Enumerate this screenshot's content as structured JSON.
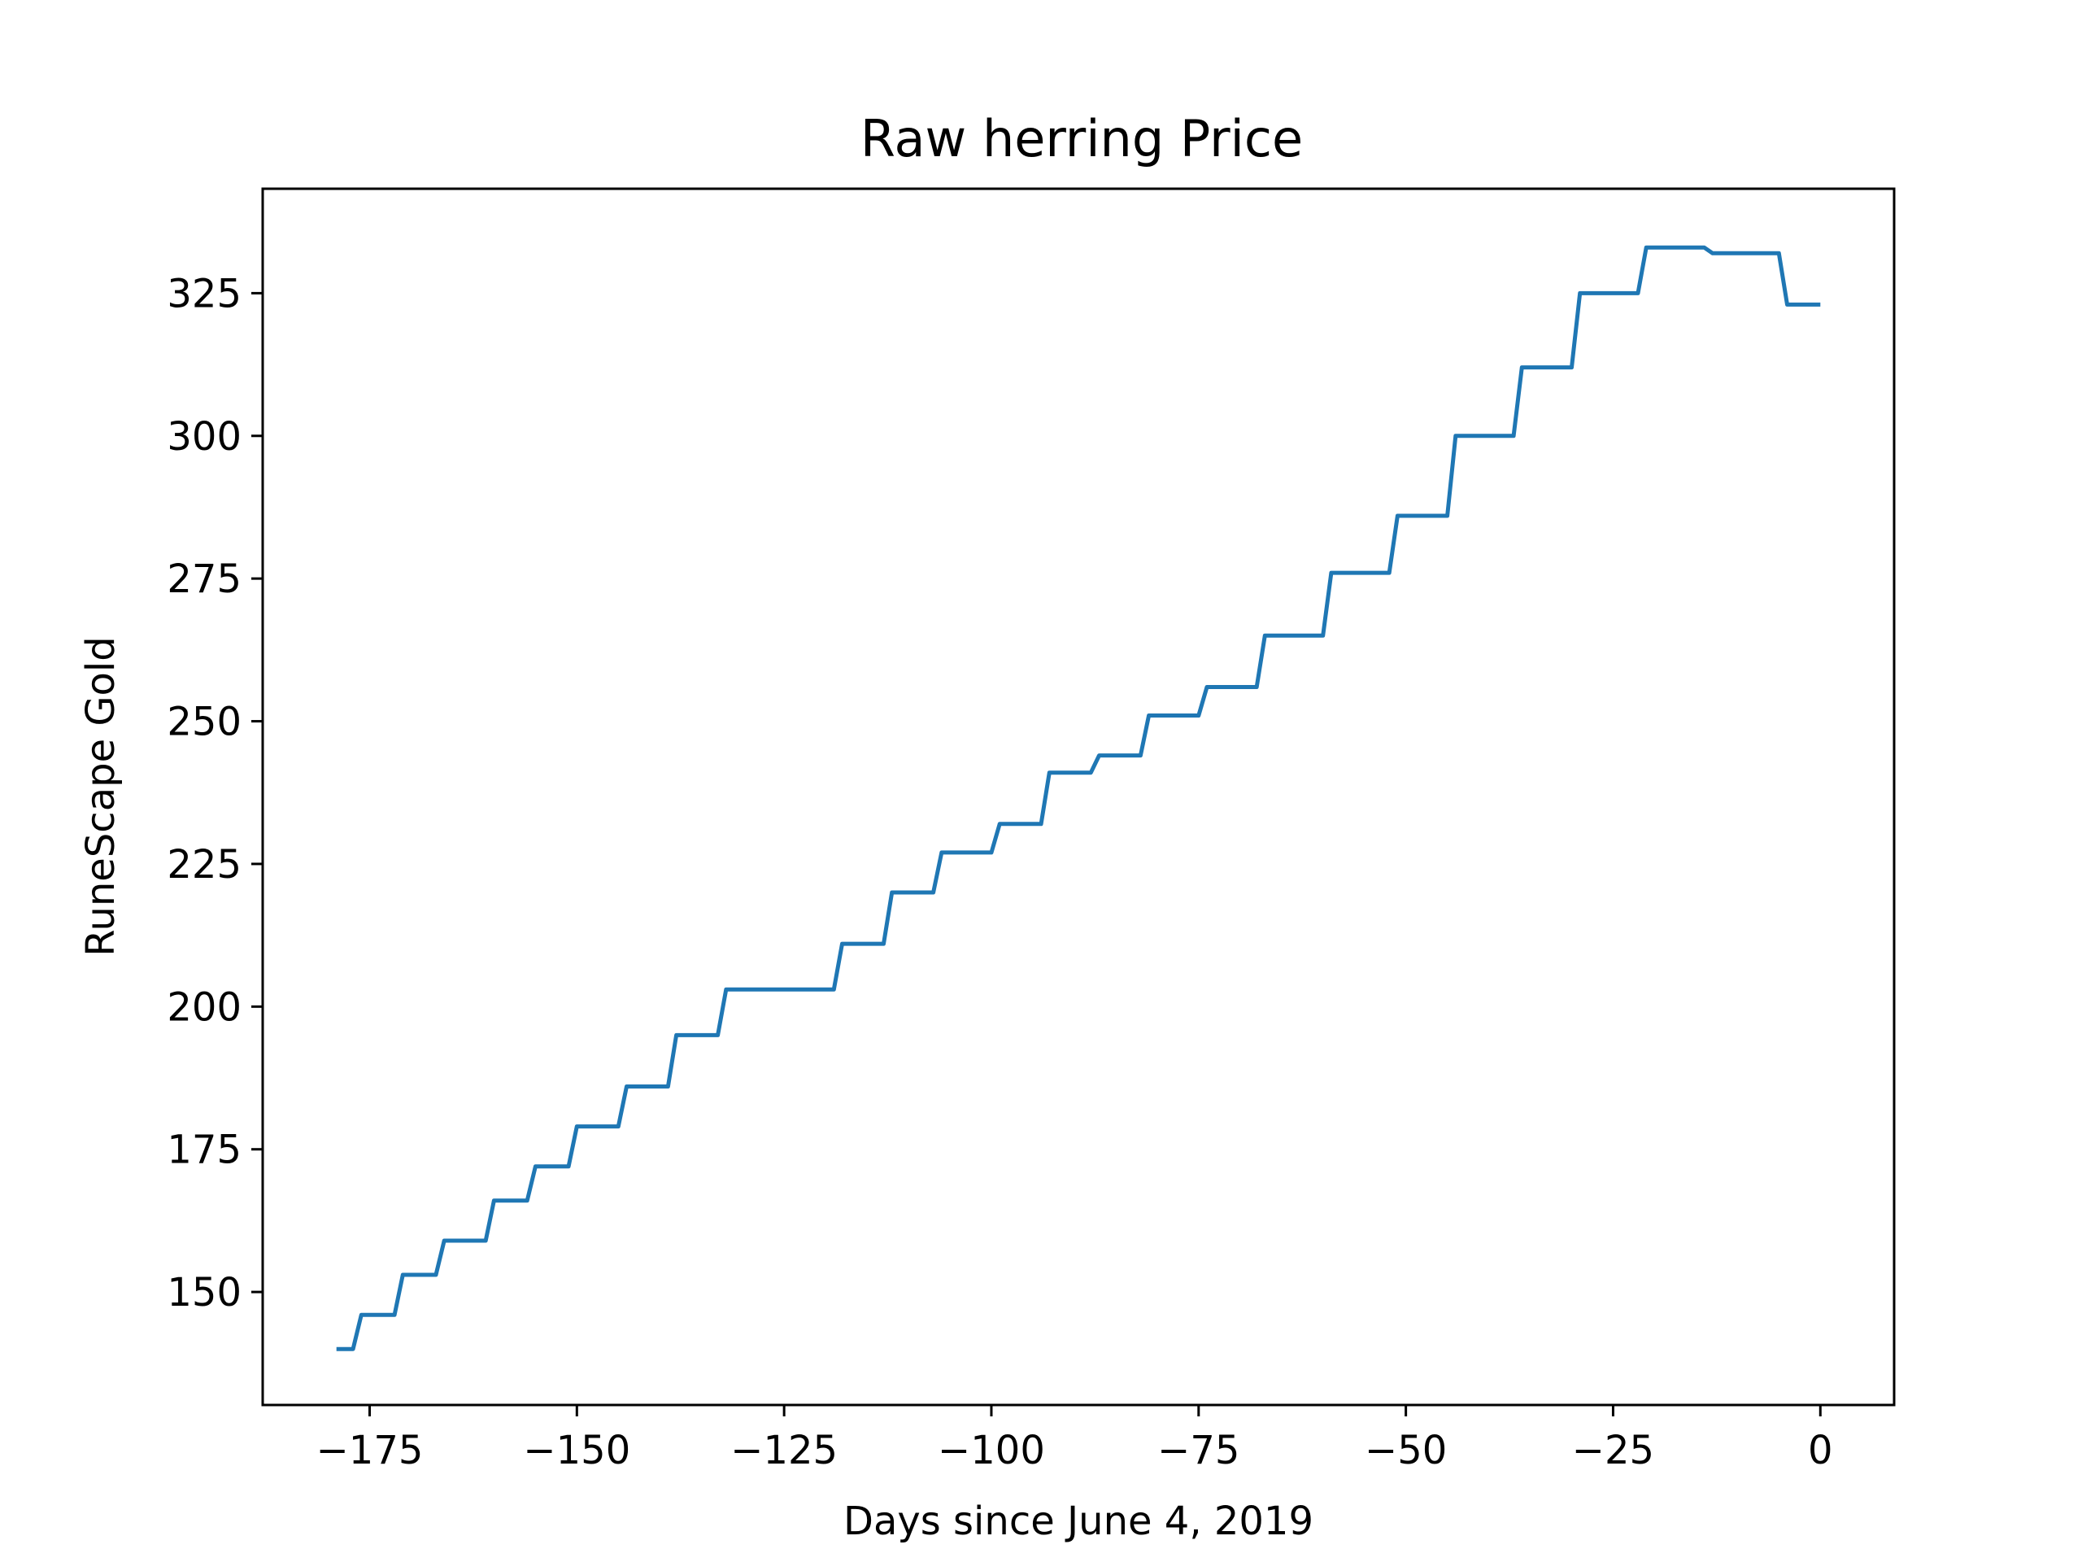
{
  "chart_data": {
    "type": "line",
    "title": "Raw herring Price",
    "xlabel": "Days since June 4, 2019",
    "ylabel": "RuneScape Gold",
    "xlim": [
      -187.9,
      8.9
    ],
    "ylim": [
      130.2,
      343.3
    ],
    "xticks": [
      -175,
      -150,
      -125,
      -100,
      -75,
      -50,
      -25,
      0
    ],
    "xtick_labels": [
      "−175",
      "−150",
      "−125",
      "−100",
      "−75",
      "−50",
      "−25",
      "0"
    ],
    "yticks": [
      150,
      175,
      200,
      225,
      250,
      275,
      300,
      325
    ],
    "ytick_labels": [
      "150",
      "175",
      "200",
      "225",
      "250",
      "275",
      "300",
      "325"
    ],
    "grid": false,
    "line_color": "#1f77b4",
    "series": [
      {
        "x": [
          -179,
          -177,
          -176,
          -172,
          -171,
          -167,
          -166,
          -161,
          -160,
          -156,
          -155,
          -151,
          -150,
          -145,
          -144,
          -139,
          -138,
          -133,
          -132,
          -119,
          -118,
          -113,
          -112,
          -107,
          -106,
          -100,
          -99,
          -94,
          -93,
          -88,
          -87,
          -82,
          -81,
          -75,
          -74,
          -68,
          -67,
          -60,
          -59,
          -52,
          -51,
          -45,
          -44,
          -37,
          -36,
          -30,
          -29,
          -22,
          -21,
          -14,
          -13,
          -5,
          -4,
          0
        ],
        "y": [
          140,
          140,
          146,
          146,
          153,
          153,
          159,
          159,
          166,
          166,
          172,
          172,
          179,
          179,
          186,
          186,
          195,
          195,
          203,
          203,
          211,
          211,
          220,
          220,
          227,
          227,
          232,
          232,
          241,
          241,
          244,
          244,
          251,
          251,
          256,
          256,
          265,
          265,
          276,
          276,
          286,
          286,
          300,
          300,
          312,
          312,
          325,
          325,
          333,
          333,
          332,
          332,
          323,
          323
        ]
      }
    ]
  }
}
